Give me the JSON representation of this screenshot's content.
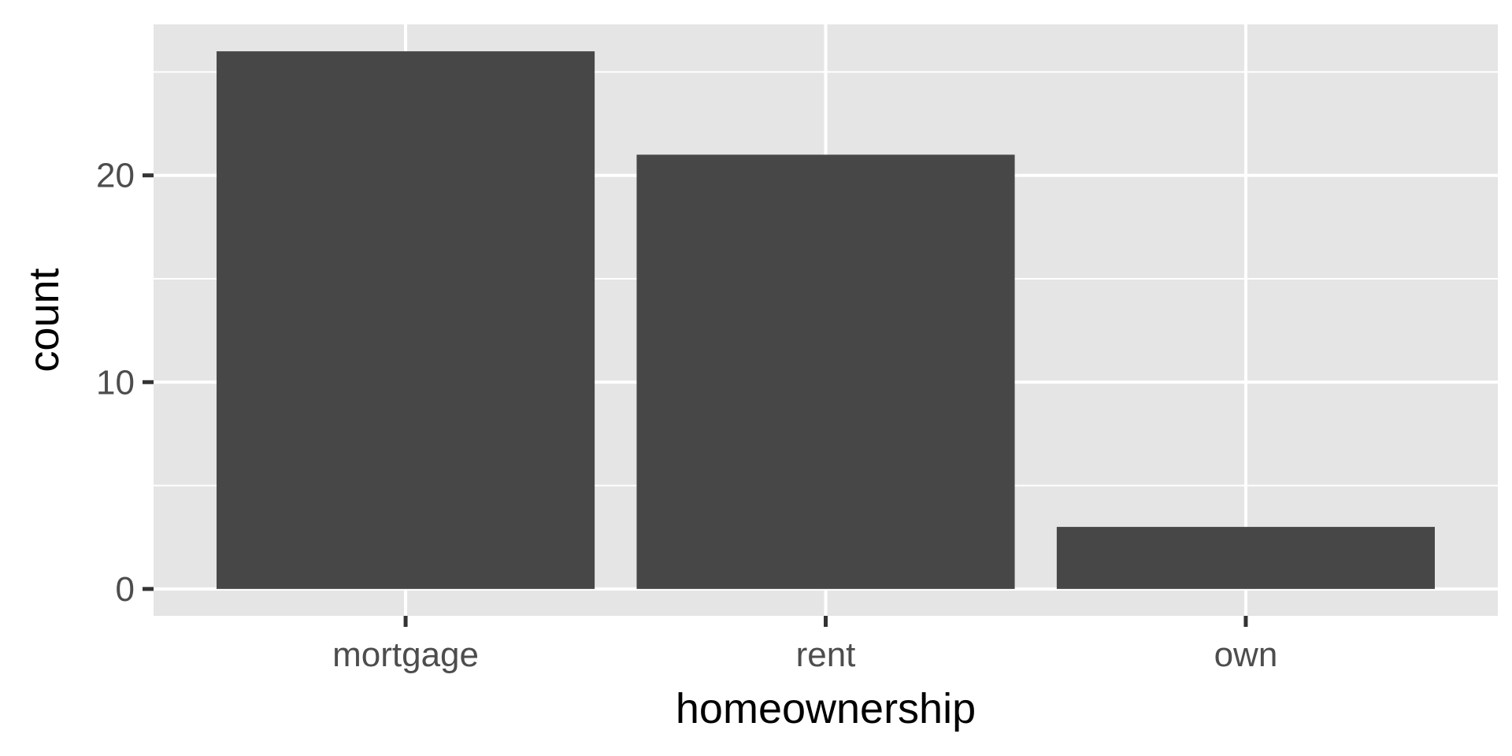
{
  "chart_data": {
    "type": "bar",
    "categories": [
      "mortgage",
      "rent",
      "own"
    ],
    "values": [
      26,
      21,
      3
    ],
    "xlabel": "homeownership",
    "ylabel": "count",
    "ylim": [
      -1.3,
      27.3
    ],
    "yticks": [
      0,
      10,
      20
    ],
    "grid": true,
    "colors": {
      "panel": "#e5e5e5",
      "bar": "#474747",
      "grid": "#ffffff",
      "tick": "#333333"
    }
  }
}
